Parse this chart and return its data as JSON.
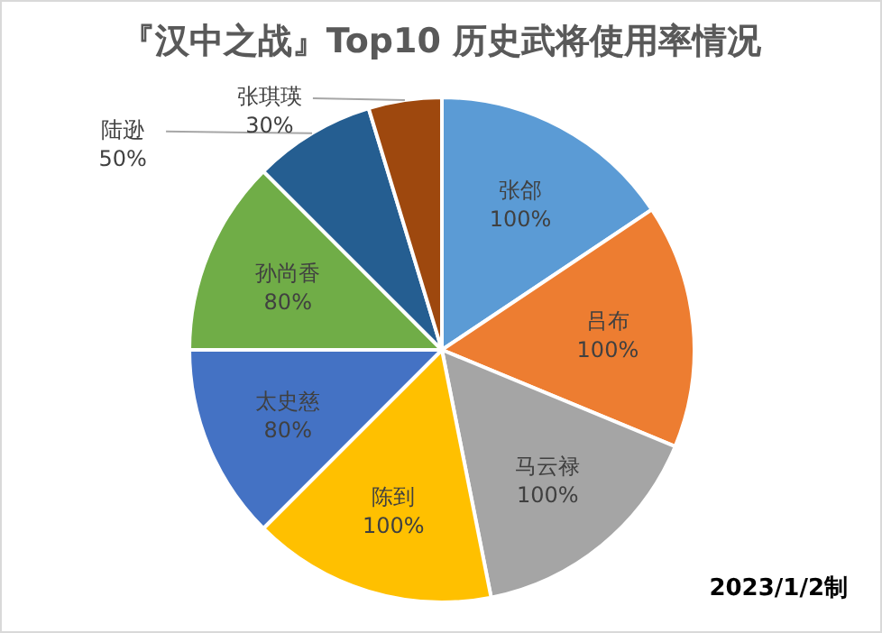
{
  "chart_data": {
    "type": "pie",
    "title": "『汉中之战』Top10 历史武将使用率情况",
    "categories": [
      "张郃",
      "吕布",
      "马云禄",
      "陈到",
      "太史慈",
      "孙尚香",
      "陆逊",
      "张琪瑛"
    ],
    "values": [
      100,
      100,
      100,
      100,
      80,
      80,
      50,
      30
    ],
    "value_labels": [
      "100%",
      "100%",
      "100%",
      "100%",
      "80%",
      "80%",
      "50%",
      "30%"
    ],
    "colors": [
      "#5b9bd5",
      "#ed7d31",
      "#a5a5a5",
      "#ffc000",
      "#4472c4",
      "#70ad47",
      "#255e91",
      "#9e480e"
    ],
    "annotations": [
      "2023/1/2制"
    ]
  }
}
